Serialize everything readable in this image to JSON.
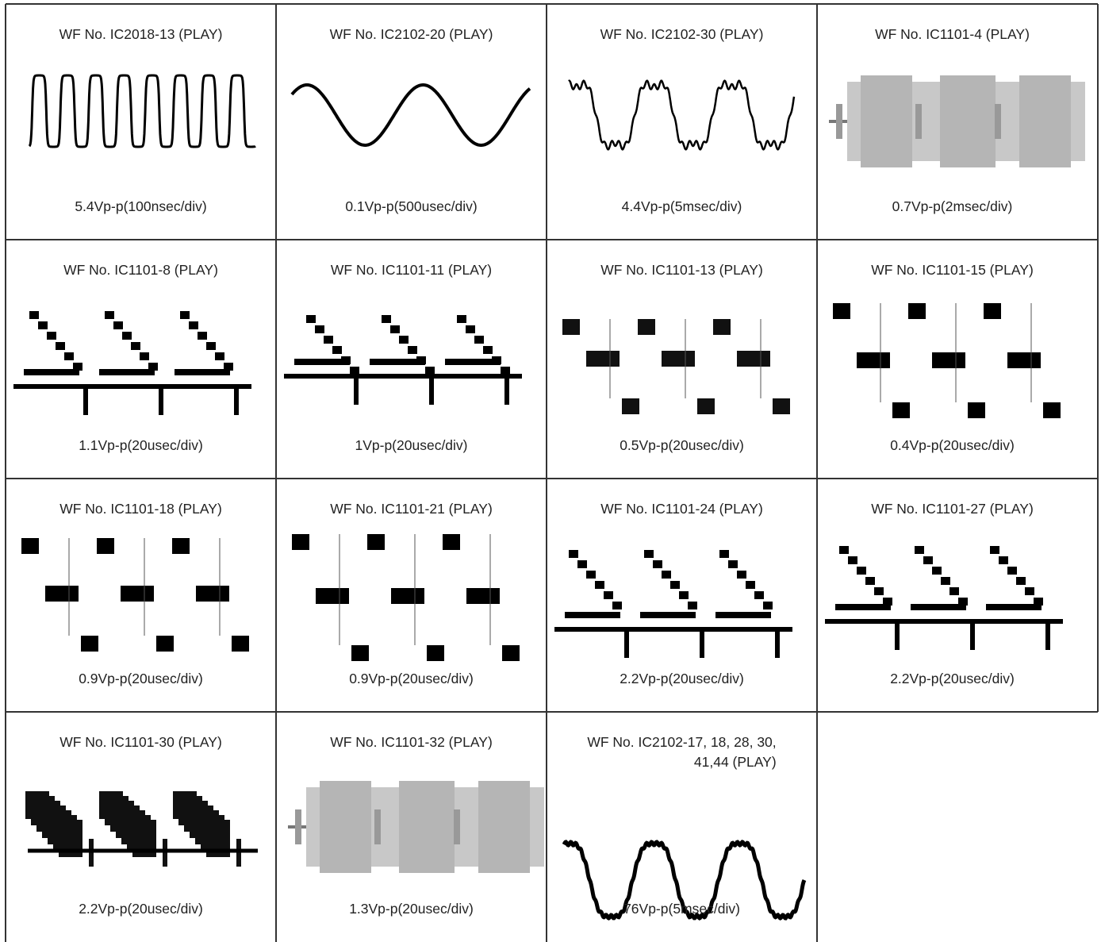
{
  "cells": [
    {
      "title_lines": [
        "WF No. IC2018-13 (PLAY)"
      ],
      "caption": "5.4Vp-p(100nsec/div)"
    },
    {
      "title_lines": [
        "WF No. IC2102-20 (PLAY)"
      ],
      "caption": "0.1Vp-p(500usec/div)"
    },
    {
      "title_lines": [
        "WF No. IC2102-30 (PLAY)"
      ],
      "caption": "4.4Vp-p(5msec/div)"
    },
    {
      "title_lines": [
        "WF No. IC1101-4 (PLAY)"
      ],
      "caption": "0.7Vp-p(2msec/div)"
    },
    {
      "title_lines": [
        "WF No. IC1101-8 (PLAY)"
      ],
      "caption": "1.1Vp-p(20usec/div)"
    },
    {
      "title_lines": [
        "WF No. IC1101-11 (PLAY)"
      ],
      "caption": "1Vp-p(20usec/div)"
    },
    {
      "title_lines": [
        "WF No. IC1101-13 (PLAY)"
      ],
      "caption": "0.5Vp-p(20usec/div)"
    },
    {
      "title_lines": [
        "WF No. IC1101-15 (PLAY)"
      ],
      "caption": "0.4Vp-p(20usec/div)"
    },
    {
      "title_lines": [
        "WF No. IC1101-18 (PLAY)"
      ],
      "caption": "0.9Vp-p(20usec/div)"
    },
    {
      "title_lines": [
        "WF No. IC1101-21 (PLAY)"
      ],
      "caption": "0.9Vp-p(20usec/div)"
    },
    {
      "title_lines": [
        "WF No. IC1101-24 (PLAY)"
      ],
      "caption": "2.2Vp-p(20usec/div)"
    },
    {
      "title_lines": [
        "WF No. IC1101-27 (PLAY)"
      ],
      "caption": "2.2Vp-p(20usec/div)"
    },
    {
      "title_lines": [
        "WF No. IC1101-30 (PLAY)"
      ],
      "caption": "2.2Vp-p(20usec/div)"
    },
    {
      "title_lines": [
        "WF No. IC1101-32 (PLAY)"
      ],
      "caption": "1.3Vp-p(20usec/div)"
    },
    {
      "title_lines": [
        "WF No. IC2102-17, 18, 28, 30,",
        "41,44 (PLAY)"
      ],
      "caption": "76Vp-p(5msec/div)"
    }
  ]
}
